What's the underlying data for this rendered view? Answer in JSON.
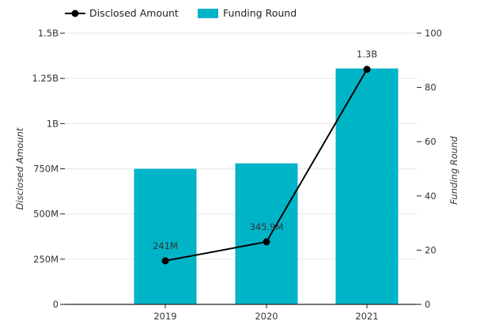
{
  "chart_data": {
    "type": "bar",
    "categories": [
      "2019",
      "2020",
      "2021"
    ],
    "series": [
      {
        "name": "Funding Round",
        "type": "bar",
        "axis": "right",
        "values": [
          50,
          52,
          87
        ],
        "color": "#00b4c8"
      },
      {
        "name": "Disclosed Amount",
        "type": "line",
        "axis": "left",
        "values": [
          241000000,
          345900000,
          1300000000
        ],
        "data_labels": [
          "241M",
          "345.9M",
          "1.3B"
        ],
        "color": "#000000"
      }
    ],
    "y_left": {
      "label": "Disclosed Amount",
      "ylim": [
        0,
        1500000000
      ],
      "ticks": [
        0,
        250000000,
        500000000,
        750000000,
        1000000000,
        1250000000,
        1500000000
      ],
      "tick_labels": [
        "0",
        "250M",
        "500M",
        "750M",
        "1B",
        "1.25B",
        "1.5B"
      ]
    },
    "y_right": {
      "label": "Funding Round",
      "ylim": [
        0,
        100
      ],
      "ticks": [
        0,
        20,
        40,
        60,
        80,
        100
      ],
      "tick_labels": [
        "0",
        "20",
        "40",
        "60",
        "80",
        "100"
      ]
    },
    "grid": true,
    "legend_position": "top-left"
  }
}
